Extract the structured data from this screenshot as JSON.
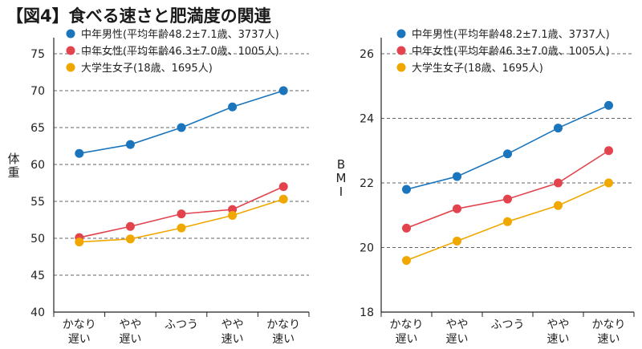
{
  "figure_title": "【図4】食べる速さと肥満度の関連",
  "chart_data": [
    {
      "type": "line",
      "ylabel": "体重",
      "ylim": [
        40,
        75
      ],
      "yticks": [
        40,
        45,
        50,
        55,
        60,
        65,
        70,
        75
      ],
      "categories": [
        "かなり\n遅い",
        "やや\n遅い",
        "ふつう",
        "やや\n速い",
        "かなり\n速い"
      ],
      "grid": "horizontal-dashed",
      "legend": "top-left",
      "series": [
        {
          "name": "中年男性(平均年齢48.2±7.1歳、3737人)",
          "color": "#1b75bc",
          "values": [
            61.5,
            62.7,
            65.0,
            67.8,
            70.0
          ]
        },
        {
          "name": "中年女性(平均年齢46.3±7.0歳、1005人)",
          "color": "#e2434c",
          "values": [
            50.1,
            51.6,
            53.3,
            53.9,
            57.0
          ]
        },
        {
          "name": "大学生女子(18歳、1695人)",
          "color": "#f0a800",
          "values": [
            49.5,
            49.9,
            51.4,
            53.1,
            55.3
          ]
        }
      ]
    },
    {
      "type": "line",
      "ylabel": "BMI",
      "ylim": [
        18,
        26
      ],
      "yticks": [
        18,
        20,
        22,
        24,
        26
      ],
      "categories": [
        "かなり\n遅い",
        "やや\n遅い",
        "ふつう",
        "やや\n速い",
        "かなり\n速い"
      ],
      "grid": "horizontal-dashed",
      "legend": "top-left",
      "series": [
        {
          "name": "中年男性(平均年齢48.2±7.1歳、3737人)",
          "color": "#1b75bc",
          "values": [
            21.8,
            22.2,
            22.9,
            23.7,
            24.4
          ]
        },
        {
          "name": "中年女性(平均年齢46.3±7.0歳、1005人)",
          "color": "#e2434c",
          "values": [
            20.6,
            21.2,
            21.5,
            22.0,
            23.0
          ]
        },
        {
          "name": "大学生女子(18歳、1695人)",
          "color": "#f0a800",
          "values": [
            19.6,
            20.2,
            20.8,
            21.3,
            22.0
          ]
        }
      ]
    }
  ]
}
